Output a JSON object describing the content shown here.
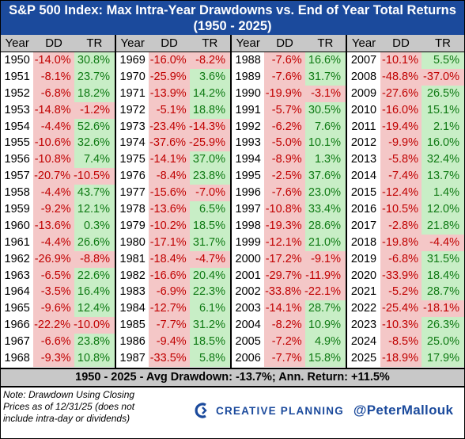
{
  "title_line1": "S&P 500 Index: Max Intra-Year Drawdowns vs. End of Year Total Returns",
  "title_line2": "(1950 - 2025)",
  "column_headers": [
    "Year",
    "DD",
    "TR"
  ],
  "colors": {
    "header_bg": "#1b4a9c",
    "negative_bg": "#f4c7c7",
    "negative_text": "#c00000",
    "positive_bg": "#c8eec6",
    "positive_text": "#0f7a14",
    "gray": "#c8c8c8"
  },
  "rows": [
    [
      "1950",
      "-14.0%",
      "30.8%"
    ],
    [
      "1951",
      "-8.1%",
      "23.7%"
    ],
    [
      "1952",
      "-6.8%",
      "18.2%"
    ],
    [
      "1953",
      "-14.8%",
      "-1.2%"
    ],
    [
      "1954",
      "-4.4%",
      "52.6%"
    ],
    [
      "1955",
      "-10.6%",
      "32.6%"
    ],
    [
      "1956",
      "-10.8%",
      "7.4%"
    ],
    [
      "1957",
      "-20.7%",
      "-10.5%"
    ],
    [
      "1958",
      "-4.4%",
      "43.7%"
    ],
    [
      "1959",
      "-9.2%",
      "12.1%"
    ],
    [
      "1960",
      "-13.6%",
      "0.3%"
    ],
    [
      "1961",
      "-4.4%",
      "26.6%"
    ],
    [
      "1962",
      "-26.9%",
      "-8.8%"
    ],
    [
      "1963",
      "-6.5%",
      "22.6%"
    ],
    [
      "1964",
      "-3.5%",
      "16.4%"
    ],
    [
      "1965",
      "-9.6%",
      "12.4%"
    ],
    [
      "1966",
      "-22.2%",
      "-10.0%"
    ],
    [
      "1967",
      "-6.6%",
      "23.8%"
    ],
    [
      "1968",
      "-9.3%",
      "10.8%"
    ],
    [
      "1969",
      "-16.0%",
      "-8.2%"
    ],
    [
      "1970",
      "-25.9%",
      "3.6%"
    ],
    [
      "1971",
      "-13.9%",
      "14.2%"
    ],
    [
      "1972",
      "-5.1%",
      "18.8%"
    ],
    [
      "1973",
      "-23.4%",
      "-14.3%"
    ],
    [
      "1974",
      "-37.6%",
      "-25.9%"
    ],
    [
      "1975",
      "-14.1%",
      "37.0%"
    ],
    [
      "1976",
      "-8.4%",
      "23.8%"
    ],
    [
      "1977",
      "-15.6%",
      "-7.0%"
    ],
    [
      "1978",
      "-13.6%",
      "6.5%"
    ],
    [
      "1979",
      "-10.2%",
      "18.5%"
    ],
    [
      "1980",
      "-17.1%",
      "31.7%"
    ],
    [
      "1981",
      "-18.4%",
      "-4.7%"
    ],
    [
      "1982",
      "-16.6%",
      "20.4%"
    ],
    [
      "1983",
      "-6.9%",
      "22.3%"
    ],
    [
      "1984",
      "-12.7%",
      "6.1%"
    ],
    [
      "1985",
      "-7.7%",
      "31.2%"
    ],
    [
      "1986",
      "-9.4%",
      "18.5%"
    ],
    [
      "1987",
      "-33.5%",
      "5.8%"
    ],
    [
      "1988",
      "-7.6%",
      "16.6%"
    ],
    [
      "1989",
      "-7.6%",
      "31.7%"
    ],
    [
      "1990",
      "-19.9%",
      "-3.1%"
    ],
    [
      "1991",
      "-5.7%",
      "30.5%"
    ],
    [
      "1992",
      "-6.2%",
      "7.6%"
    ],
    [
      "1993",
      "-5.0%",
      "10.1%"
    ],
    [
      "1994",
      "-8.9%",
      "1.3%"
    ],
    [
      "1995",
      "-2.5%",
      "37.6%"
    ],
    [
      "1996",
      "-7.6%",
      "23.0%"
    ],
    [
      "1997",
      "-10.8%",
      "33.4%"
    ],
    [
      "1998",
      "-19.3%",
      "28.6%"
    ],
    [
      "1999",
      "-12.1%",
      "21.0%"
    ],
    [
      "2000",
      "-17.2%",
      "-9.1%"
    ],
    [
      "2001",
      "-29.7%",
      "-11.9%"
    ],
    [
      "2002",
      "-33.8%",
      "-22.1%"
    ],
    [
      "2003",
      "-14.1%",
      "28.7%"
    ],
    [
      "2004",
      "-8.2%",
      "10.9%"
    ],
    [
      "2005",
      "-7.2%",
      "4.9%"
    ],
    [
      "2006",
      "-7.7%",
      "15.8%"
    ],
    [
      "2007",
      "-10.1%",
      "5.5%"
    ],
    [
      "2008",
      "-48.8%",
      "-37.0%"
    ],
    [
      "2009",
      "-27.6%",
      "26.5%"
    ],
    [
      "2010",
      "-16.0%",
      "15.1%"
    ],
    [
      "2011",
      "-19.4%",
      "2.1%"
    ],
    [
      "2012",
      "-9.9%",
      "16.0%"
    ],
    [
      "2013",
      "-5.8%",
      "32.4%"
    ],
    [
      "2014",
      "-7.4%",
      "13.7%"
    ],
    [
      "2015",
      "-12.4%",
      "1.4%"
    ],
    [
      "2016",
      "-10.5%",
      "12.0%"
    ],
    [
      "2017",
      "-2.8%",
      "21.8%"
    ],
    [
      "2018",
      "-19.8%",
      "-4.4%"
    ],
    [
      "2019",
      "-6.8%",
      "31.5%"
    ],
    [
      "2020",
      "-33.9%",
      "18.4%"
    ],
    [
      "2021",
      "-5.2%",
      "28.7%"
    ],
    [
      "2022",
      "-25.4%",
      "-18.1%"
    ],
    [
      "2023",
      "-10.3%",
      "26.3%"
    ],
    [
      "2024",
      "-8.5%",
      "25.0%"
    ],
    [
      "2025",
      "-18.9%",
      "17.9%"
    ]
  ],
  "summary": "1950 - 2025 - Avg Drawdown: -13.7%; Ann. Return: +11.5%",
  "note": "Note: Drawdown Using Closing Prices as of 12/31/25 (does not include intra-day or dividends)",
  "brand_name": "CREATIVE PLANNING",
  "brand_icon": "creative-planning-logo-icon",
  "handle": "@PeterMallouk"
}
